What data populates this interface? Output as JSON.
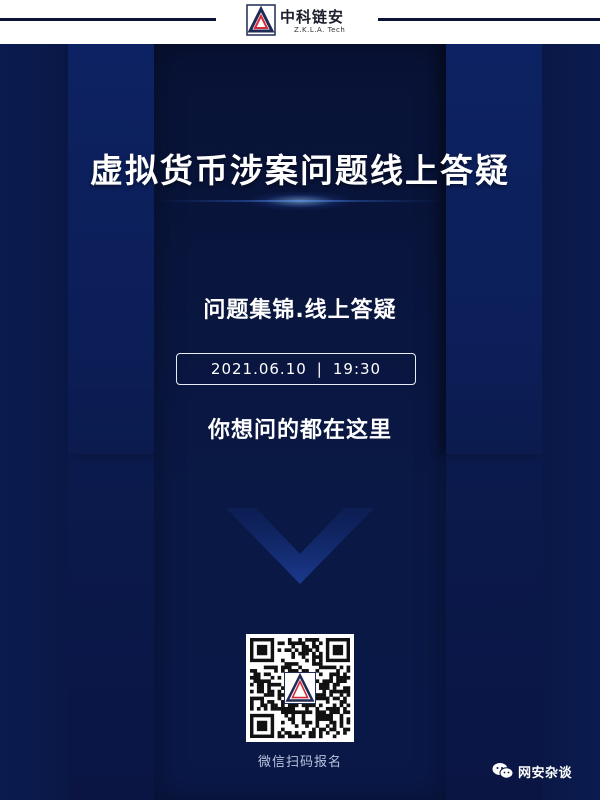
{
  "header": {
    "logo_name": "中科链安",
    "logo_sub": "Z.K.L.A. Tech"
  },
  "poster": {
    "title": "虚拟货币涉案问题线上答疑",
    "subtitle": "问题集锦.线上答疑",
    "date": "2021.06.10",
    "separator": "|",
    "time": "19:30",
    "tagline": "你想问的都在这里",
    "qr_caption": "微信扫码报名"
  },
  "watermark": {
    "icon": "wechat-icon",
    "text": "网安杂谈"
  },
  "colors": {
    "background_top": "#0a1640",
    "background_bottom": "#0a1544",
    "text": "#ffffff",
    "caption": "#b9c3dd",
    "header_line": "#0b1436"
  }
}
